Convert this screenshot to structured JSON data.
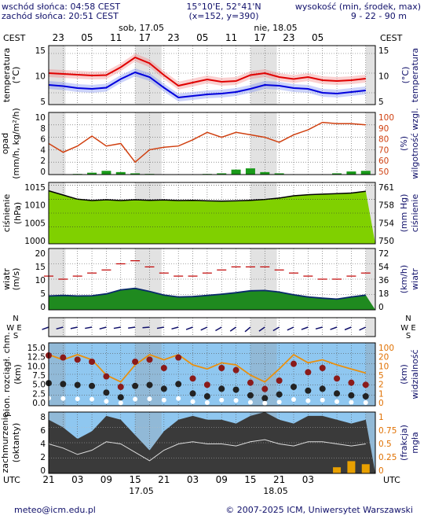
{
  "header": {
    "sunrise": "wschód słońca: 04:58 CEST",
    "sunset": "zachód słońca: 20:51 CEST",
    "coords": "15°10'E, 52°41'N",
    "grid": "(x=152,  y=390)",
    "height_label": "wysokość (min, środek, max)",
    "height_values": "9 - 22 - 90 m"
  },
  "timeline": {
    "day1": "sob, 17.05",
    "day2": "nie, 18.05",
    "tz_left": "CEST",
    "tz_right": "CEST",
    "utc_left": "UTC",
    "utc_right": "UTC",
    "top_hours": [
      "23",
      "05",
      "11",
      "17",
      "23",
      "05",
      "11",
      "17",
      "23",
      "05"
    ],
    "bottom_hours": [
      "21",
      "03",
      "09",
      "15",
      "21",
      "03",
      "09",
      "15",
      "21",
      "03"
    ],
    "bottom_dates": [
      "17.05",
      "18.05"
    ]
  },
  "footer": {
    "email": "meteo@icm.edu.pl",
    "copyright": "© 2007-2025 ICM, Uniwersytet Warszawski"
  },
  "chart_data": [
    {
      "id": "temperature",
      "type": "line",
      "ylabel_left": "temperatura",
      "yunit_left": "(°C)",
      "ylabel_right": "temperatura",
      "yunit_right": "(°C)",
      "yticks": [
        "15",
        "10",
        "5"
      ],
      "ylim": [
        2,
        17
      ],
      "x_hours_utc": [
        21,
        24,
        27,
        30,
        33,
        36,
        39,
        42,
        45,
        48,
        51,
        54,
        57,
        60,
        63,
        66,
        69,
        72,
        75,
        78,
        81,
        84,
        87
      ],
      "series": [
        {
          "values": [
            10.0,
            9.8,
            9.6,
            9.4,
            9.5,
            11.5,
            14.0,
            12.5,
            9.5,
            6.8,
            7.6,
            8.4,
            7.8,
            8.0,
            9.5,
            10.0,
            9.0,
            8.5,
            9.0,
            8.2,
            8.0,
            8.2,
            8.6
          ],
          "color": "#e00000"
        },
        {
          "values": [
            7.0,
            6.7,
            6.2,
            6.0,
            6.3,
            8.5,
            10.2,
            9.0,
            6.3,
            3.8,
            4.2,
            4.6,
            4.8,
            5.2,
            6.0,
            7.0,
            6.8,
            6.2,
            6.0,
            5.0,
            4.8,
            5.2,
            5.6
          ],
          "color": "#0000dd"
        }
      ]
    },
    {
      "id": "precip",
      "type": "bar",
      "ylabel_left": "opad",
      "yunit_left": "(mm/h, kg/m²/h)",
      "ylabel_right": "wilgotność wzgl.",
      "yunit_right": "(%)",
      "yticks_left": [
        "10",
        "8",
        "6",
        "4",
        "2",
        "0"
      ],
      "yticks_right": [
        "100",
        "90",
        "80",
        "70",
        "60",
        "50"
      ],
      "ylim": [
        0,
        10
      ],
      "ylim_right": [
        50,
        100
      ],
      "x_hours_utc": [
        21,
        24,
        27,
        30,
        33,
        36,
        39,
        42,
        45,
        48,
        51,
        54,
        57,
        60,
        63,
        66,
        69,
        72,
        75,
        78,
        81,
        84,
        87
      ],
      "values": [
        0.0,
        0.0,
        0.1,
        0.3,
        0.6,
        0.4,
        0.2,
        0.1,
        0.0,
        0.0,
        0.0,
        0.1,
        0.2,
        0.8,
        1.0,
        0.4,
        0.2,
        0.0,
        0.0,
        0.0,
        0.2,
        0.5,
        0.6
      ],
      "humidity": [
        75,
        68,
        73,
        81,
        73,
        75,
        60,
        70,
        72,
        73,
        78,
        84,
        80,
        84,
        82,
        80,
        76,
        82,
        86,
        92,
        91,
        91,
        90
      ],
      "series_colors": {
        "bar": "#1a9a1a",
        "humidity": "#d04010"
      }
    },
    {
      "id": "pressure",
      "type": "area",
      "ylabel_left": "ciśnienie",
      "yunit_left": "(hPa)",
      "ylabel_right": "ciśnienie",
      "yunit_right": "(mm Hg)",
      "yticks_left": [
        "1015",
        "1010",
        "1005",
        "1000"
      ],
      "yticks_right": [
        "761",
        "758",
        "754",
        "750"
      ],
      "ylim": [
        994,
        1016
      ],
      "x_hours_utc": [
        21,
        24,
        27,
        30,
        33,
        36,
        39,
        42,
        45,
        48,
        51,
        54,
        57,
        60,
        63,
        66,
        69,
        72,
        75,
        78,
        81,
        84,
        87
      ],
      "values": [
        1013.0,
        1011.5,
        1010.0,
        1009.5,
        1009.8,
        1009.5,
        1009.8,
        1009.6,
        1009.7,
        1009.5,
        1009.6,
        1009.4,
        1009.3,
        1009.4,
        1009.6,
        1009.9,
        1010.4,
        1011.2,
        1011.6,
        1011.8,
        1012.0,
        1012.2,
        1012.8
      ],
      "color": "#80d000"
    },
    {
      "id": "wind",
      "type": "line",
      "ylabel_left": "wiatr",
      "yunit_left": "(m/s)",
      "ylabel_right": "wiatr",
      "yunit_right": "(km/h)",
      "yticks_left": [
        "20",
        "15",
        "10",
        "5",
        "0"
      ],
      "yticks_right": [
        "72",
        "54",
        "36",
        "18",
        "0"
      ],
      "ylim": [
        0,
        20
      ],
      "x_hours_utc": [
        21,
        24,
        27,
        30,
        33,
        36,
        39,
        42,
        45,
        48,
        51,
        54,
        57,
        60,
        63,
        66,
        69,
        72,
        75,
        78,
        81,
        84,
        87
      ],
      "series": [
        {
          "values": [
            4.5,
            4.7,
            4.5,
            4.6,
            5.2,
            6.5,
            7.0,
            6.0,
            4.8,
            4.2,
            4.3,
            4.7,
            5.1,
            5.6,
            6.2,
            6.3,
            5.8,
            4.9,
            4.2,
            3.8,
            3.5,
            4.2,
            4.8
          ],
          "color": "#0a2a6a"
        },
        {
          "values": [
            11,
            10,
            11,
            12,
            13,
            15,
            16,
            14,
            12,
            11,
            11,
            12,
            13,
            14,
            14,
            14,
            13,
            12,
            11,
            10,
            10,
            11,
            12
          ],
          "color": "#c00000"
        }
      ]
    },
    {
      "id": "wind-direction",
      "type": "table",
      "ylabel_left_N": "N",
      "ylabel_left_WE": "W E",
      "ylabel_left_S": "S",
      "ylabel_right_N": "N",
      "ylabel_right_WE": "W E",
      "ylabel_right_S": "S",
      "direction_deg": [
        250,
        255,
        258,
        260,
        255,
        260,
        262,
        265,
        260,
        255,
        250,
        245,
        240,
        235,
        230,
        235,
        240,
        245,
        250,
        255,
        250,
        248,
        245
      ]
    },
    {
      "id": "visibility",
      "type": "scatter",
      "ylabel_left": "pion. rozciągł. chm.",
      "yunit_left": "(km)",
      "ylabel_right": "widzialność",
      "yunit_right": "(km)",
      "yticks_left": [
        "15.0",
        "12.5",
        "10.0",
        "7.5",
        "5.0",
        "2.5",
        "0.0"
      ],
      "yticks_right": [
        "100",
        "20",
        "10",
        "5",
        "2",
        "1",
        "0"
      ],
      "ylim": [
        0,
        15
      ],
      "x_hours_utc": [
        21,
        24,
        27,
        30,
        33,
        36,
        39,
        42,
        45,
        48,
        51,
        54,
        57,
        60,
        63,
        66,
        69,
        72,
        75,
        78,
        81,
        84,
        87
      ],
      "visibility_km": [
        20,
        15,
        20,
        15,
        5,
        3,
        10,
        20,
        15,
        20,
        10,
        8,
        12,
        10,
        5,
        3,
        8,
        20,
        12,
        15,
        10,
        8,
        6
      ],
      "cloud_extent_km": [
        12.0,
        11.5,
        11.0,
        10.5,
        7.0,
        4.5,
        10.5,
        11.0,
        9.0,
        11.5,
        6.5,
        5.0,
        9.0,
        8.5,
        5.5,
        4.0,
        6.0,
        10.0,
        8.0,
        9.0,
        6.5,
        5.5,
        5.0
      ],
      "series_colors": {
        "visibility": "#e89010",
        "cloud": "#222222"
      }
    },
    {
      "id": "cloud-cover",
      "type": "area",
      "ylabel_left": "zachmurzenie",
      "yunit_left": "(oktanty)",
      "ylabel_right": "mgła",
      "yunit_right": "(frakcja)",
      "yticks_left": [
        "8",
        "6",
        "4",
        "2",
        "0"
      ],
      "yticks_right": [
        "1",
        "0.75",
        "0.5",
        "0.25",
        "0"
      ],
      "ylim": [
        0,
        8
      ],
      "x_hours_utc": [
        21,
        24,
        27,
        30,
        33,
        36,
        39,
        42,
        45,
        48,
        51,
        54,
        57,
        60,
        63,
        66,
        69,
        72,
        75,
        78,
        81,
        84,
        87
      ],
      "values": [
        7.0,
        6.0,
        4.5,
        5.5,
        7.5,
        7.0,
        5.0,
        3.0,
        5.5,
        7.0,
        7.5,
        7.0,
        7.0,
        6.5,
        7.5,
        8.0,
        7.0,
        6.5,
        7.5,
        7.5,
        7.0,
        6.5,
        7.0
      ],
      "fog": [
        0,
        0,
        0,
        0,
        0,
        0,
        0,
        0,
        0,
        0,
        0,
        0,
        0,
        0,
        0,
        0,
        0,
        0,
        0,
        0,
        0.1,
        0.2,
        0.15
      ],
      "series_colors": {
        "cloud": "#3a3a3a",
        "fog": "#e8a000"
      }
    }
  ]
}
